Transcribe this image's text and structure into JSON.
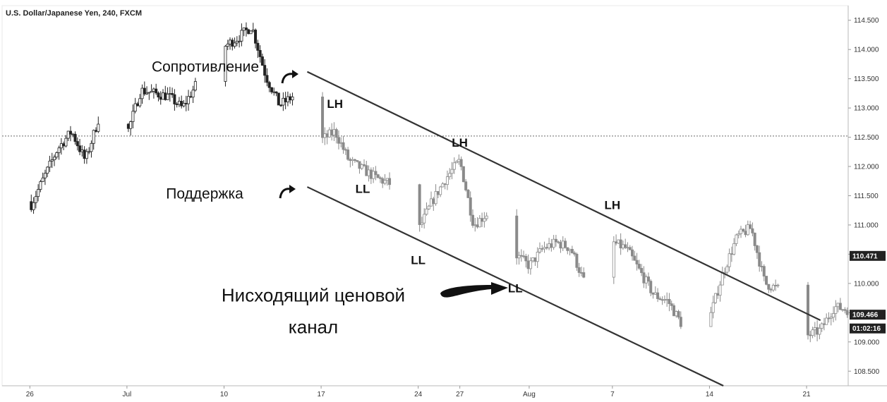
{
  "chart_data": {
    "type": "candlestick",
    "title": "U.S. Dollar/Japanese Yen, 240, FXCM",
    "ylim": [
      108.25,
      114.75
    ],
    "x_range": [
      "2017-06-24",
      "2017-08-24"
    ],
    "y_ticks": [
      "114.500",
      "114.000",
      "113.500",
      "113.000",
      "112.500",
      "112.000",
      "111.500",
      "111.000",
      "110.500",
      "110.000",
      "109.500",
      "109.000",
      "108.500"
    ],
    "x_ticks": [
      {
        "label": "26",
        "date": "2017-06-26"
      },
      {
        "label": "Jul",
        "date": "2017-07-03"
      },
      {
        "label": "10",
        "date": "2017-07-10"
      },
      {
        "label": "17",
        "date": "2017-07-17"
      },
      {
        "label": "24",
        "date": "2017-07-24"
      },
      {
        "label": "27",
        "date": "2017-07-27"
      },
      {
        "label": "Aug",
        "date": "2017-08-01"
      },
      {
        "label": "7",
        "date": "2017-08-07"
      },
      {
        "label": "14",
        "date": "2017-08-14"
      },
      {
        "label": "21",
        "date": "2017-08-21"
      }
    ],
    "reference_line": 112.52,
    "price_labels": [
      {
        "text": "110.471",
        "value": 110.471,
        "color": "#222222"
      },
      {
        "text": "109.466",
        "value": 109.466,
        "color": "#222222"
      },
      {
        "text": "01:02:16",
        "value": 109.23,
        "color": "#222222"
      }
    ],
    "price_path": [
      [
        "2017-06-24",
        111.4
      ],
      [
        "2017-06-26",
        111.3
      ],
      [
        "2017-06-28",
        112.3
      ],
      [
        "2017-06-29",
        112.6
      ],
      [
        "2017-06-30",
        112.1
      ],
      [
        "2017-07-01",
        112.85
      ],
      [
        "2017-07-02",
        111.9
      ],
      [
        "2017-07-03",
        112.55
      ],
      [
        "2017-07-04",
        113.3
      ],
      [
        "2017-07-05",
        113.25
      ],
      [
        "2017-07-06",
        113.2
      ],
      [
        "2017-07-07",
        113.0
      ],
      [
        "2017-07-08",
        113.4
      ],
      [
        "2017-07-09",
        113.9
      ],
      [
        "2017-07-10",
        114.05
      ],
      [
        "2017-07-11",
        114.2
      ],
      [
        "2017-07-12",
        114.4
      ],
      [
        "2017-07-13",
        113.55
      ],
      [
        "2017-07-14",
        113.05
      ],
      [
        "2017-07-15",
        113.2
      ],
      [
        "2017-07-16",
        113.55
      ],
      [
        "2017-07-17",
        112.45
      ],
      [
        "2017-07-18",
        112.6
      ],
      [
        "2017-07-19",
        112.1
      ],
      [
        "2017-07-20",
        111.95
      ],
      [
        "2017-07-21",
        111.8
      ],
      [
        "2017-07-22",
        111.7
      ],
      [
        "2017-07-23",
        111.3
      ],
      [
        "2017-07-24",
        110.9
      ],
      [
        "2017-07-25",
        111.4
      ],
      [
        "2017-07-26",
        111.8
      ],
      [
        "2017-07-27",
        112.1
      ],
      [
        "2017-07-28",
        111.0
      ],
      [
        "2017-07-29",
        111.2
      ],
      [
        "2017-07-30",
        110.7
      ],
      [
        "2017-07-31",
        110.5
      ],
      [
        "2017-08-01",
        110.3
      ],
      [
        "2017-08-02",
        110.6
      ],
      [
        "2017-08-03",
        110.7
      ],
      [
        "2017-08-04",
        110.6
      ],
      [
        "2017-08-05",
        110.0
      ],
      [
        "2017-08-06",
        110.4
      ],
      [
        "2017-08-07",
        110.7
      ],
      [
        "2017-08-08",
        110.6
      ],
      [
        "2017-08-09",
        110.2
      ],
      [
        "2017-08-10",
        109.8
      ],
      [
        "2017-08-11",
        109.7
      ],
      [
        "2017-08-12",
        109.3
      ],
      [
        "2017-08-13",
        109.2
      ],
      [
        "2017-08-14",
        109.4
      ],
      [
        "2017-08-15",
        110.2
      ],
      [
        "2017-08-16",
        110.8
      ],
      [
        "2017-08-17",
        110.95
      ],
      [
        "2017-08-18",
        110.0
      ],
      [
        "2017-08-19",
        109.9
      ],
      [
        "2017-08-20",
        109.4
      ],
      [
        "2017-08-21",
        109.1
      ],
      [
        "2017-08-22",
        109.2
      ],
      [
        "2017-08-23",
        109.6
      ],
      [
        "2017-08-24",
        109.55
      ]
    ],
    "channel_lines": [
      {
        "name": "resistance",
        "from": [
          "2017-07-16",
          113.62
        ],
        "to": [
          "2017-08-22",
          109.37
        ]
      },
      {
        "name": "support",
        "from": [
          "2017-07-16",
          111.65
        ],
        "to": [
          "2017-08-15",
          108.25
        ]
      }
    ],
    "annotations": [
      {
        "text": "Сопротивление",
        "date": "2017-07-03",
        "value": 113.62,
        "style": "big"
      },
      {
        "text": "Поддержка",
        "date": "2017-07-03",
        "value": 111.45,
        "style": "big"
      },
      {
        "text": "LH",
        "date": "2017-07-18",
        "value": 113.0,
        "style": "bold"
      },
      {
        "text": "LH",
        "date": "2017-07-27",
        "value": 112.34,
        "style": "bold"
      },
      {
        "text": "LH",
        "date": "2017-08-07",
        "value": 111.27,
        "style": "bold"
      },
      {
        "text": "LL",
        "date": "2017-07-20",
        "value": 111.55,
        "style": "bold"
      },
      {
        "text": "LL",
        "date": "2017-07-24",
        "value": 110.33,
        "style": "bold"
      },
      {
        "text": "LL",
        "date": "2017-07-31",
        "value": 109.85,
        "style": "bold"
      },
      {
        "text": "Нисходящий ценовой",
        "date": "2017-07-24",
        "value": 109.69,
        "style": "huge"
      },
      {
        "text": "канал",
        "date": "2017-07-24",
        "value": 109.15,
        "style": "huge"
      }
    ]
  }
}
